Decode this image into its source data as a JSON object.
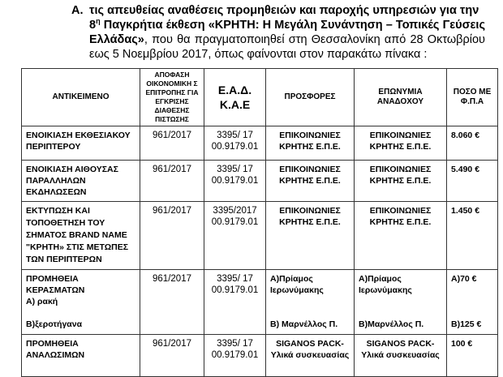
{
  "intro": {
    "label": "Α.",
    "line1": "τις απευθείας αναθέσεις προμηθειών και παροχής υπηρεσιών  για την",
    "ordinal": "8",
    "ordinal_sup": "η",
    "line2_bold": " Παγκρήτια έκθεση «ΚΡΗΤΗ: Η Μεγάλη Συνάντηση – Τοπικές Γεύσεις Ελλάδας»",
    "line3": ", που θα πραγματοποιηθεί στη Θεσσαλονίκη από 28 Οκτωβρίου εως 5 Νοεμβρίου 2017, όπως φαίνονται στον παρακάτω πίνακα :"
  },
  "table": {
    "headers": [
      "ΑΝΤΙΚΕΙΜΕΝΟ",
      "ΑΠΟΦΑΣΗ ΟΙΚΟΝΟΜΙΚΗ Σ ΕΠΙΤΡΟΠΗΣ ΓΙΑ ΕΓΚΡΙΣΗΣ ΔΙΑΘΕΣΗΣ ΠΙΣΤΩΣΗΣ",
      "Ε.Α.Δ. Κ.Α.Ε",
      "ΠΡΟΣΦΟΡΕΣ",
      "ΕΠΩΝΥΜΙΑ ΑΝΑΔΟΧΟΥ",
      "ΠΟΣΟ ΜΕ Φ.Π.Α"
    ],
    "rows": [
      {
        "subject": "ΕΝΟΙΚΙΑΣΗ ΕΚΘΕΣΙΑΚΟΥ ΠΕΡΙΠΤΕΡΟΥ",
        "decision": "961/2017",
        "ead1": "3395/ 17",
        "ead2": "00.9179.01",
        "offers": "ΕΠΙΚΟΙΝΩΝΙΕΣ ΚΡΗΤΗΣ Ε.Π.Ε.",
        "contractor": "ΕΠΙΚΟΙΝΩΝΙΕΣ ΚΡΗΤΗΣ Ε.Π.Ε.",
        "amount": "8.060 €"
      },
      {
        "subject": "ΕΝΟΙΚΙΑΣΗ ΑΙΘΟΥΣΑΣ ΠΑΡΑΛΛΗΛΩΝ ΕΚΔΗΛΩΣΕΩΝ",
        "decision": "961/2017",
        "ead1": "3395/ 17",
        "ead2": "00.9179.01",
        "offers": "ΕΠΙΚΟΙΝΩΝΙΕΣ ΚΡΗΤΗΣ Ε.Π.Ε.",
        "contractor": "ΕΠΙΚΟΙΝΩΝΙΕΣ ΚΡΗΤΗΣ Ε.Π.Ε.",
        "amount": "5.490 €"
      },
      {
        "subject": "ΕΚΤΥΠΩΣΗ ΚΑΙ ΤΟΠΟΘΕΤΗΣΗ ΤΟΥ ΣΗΜΑΤΟΣ BRAND NAME \"ΚΡΗΤΗ» ΣΤΙΣ ΜΕΤΩΠΕΣ ΤΩΝ ΠΕΡΙΠΤΕΡΩΝ",
        "decision": "961/2017",
        "ead1": "3395/2017",
        "ead2": "00.9179.01",
        "offers": "ΕΠΙΚΟΙΝΩΝΙΕΣ ΚΡΗΤΗΣ Ε.Π.Ε.",
        "contractor": "ΕΠΙΚΟΙΝΩΝΙΕΣ ΚΡΗΤΗΣ Ε.Π.Ε.",
        "amount": "1.450 €"
      },
      {
        "subject": "ΠΡΟΜΗΘΕΙΑ ΚΕΡΑΣΜΑΤΩΝ",
        "subject_a": "Α) ρακή",
        "subject_b": "Β)ξεροτήγανα",
        "decision": "961/2017",
        "ead1": "3395/ 17",
        "ead2": "00.9179.01",
        "offers_a": "Α)Πρίαμος Ιερωνύμακης",
        "offers_b": "Β) Μαρνέλλος Π.",
        "contractor_a": "Α)Πρίαμος Ιερωνύμακης",
        "contractor_b": "Β)Μαρνέλλος Π.",
        "amount_a": "Α)70 €",
        "amount_b": "Β)125 €"
      },
      {
        "subject": "ΠΡΟΜΗΘΕΙΑ ΑΝΑΛΩΣΙΜΩΝ",
        "decision": "961/2017",
        "ead1": "3395/ 17",
        "ead2": "00.9179.01",
        "offers": "SIGANOS PACK- Υλικά συσκευασίας",
        "contractor": "SIGANOS PACK- Υλικά συσκευασίας",
        "amount": "100  €"
      }
    ]
  }
}
